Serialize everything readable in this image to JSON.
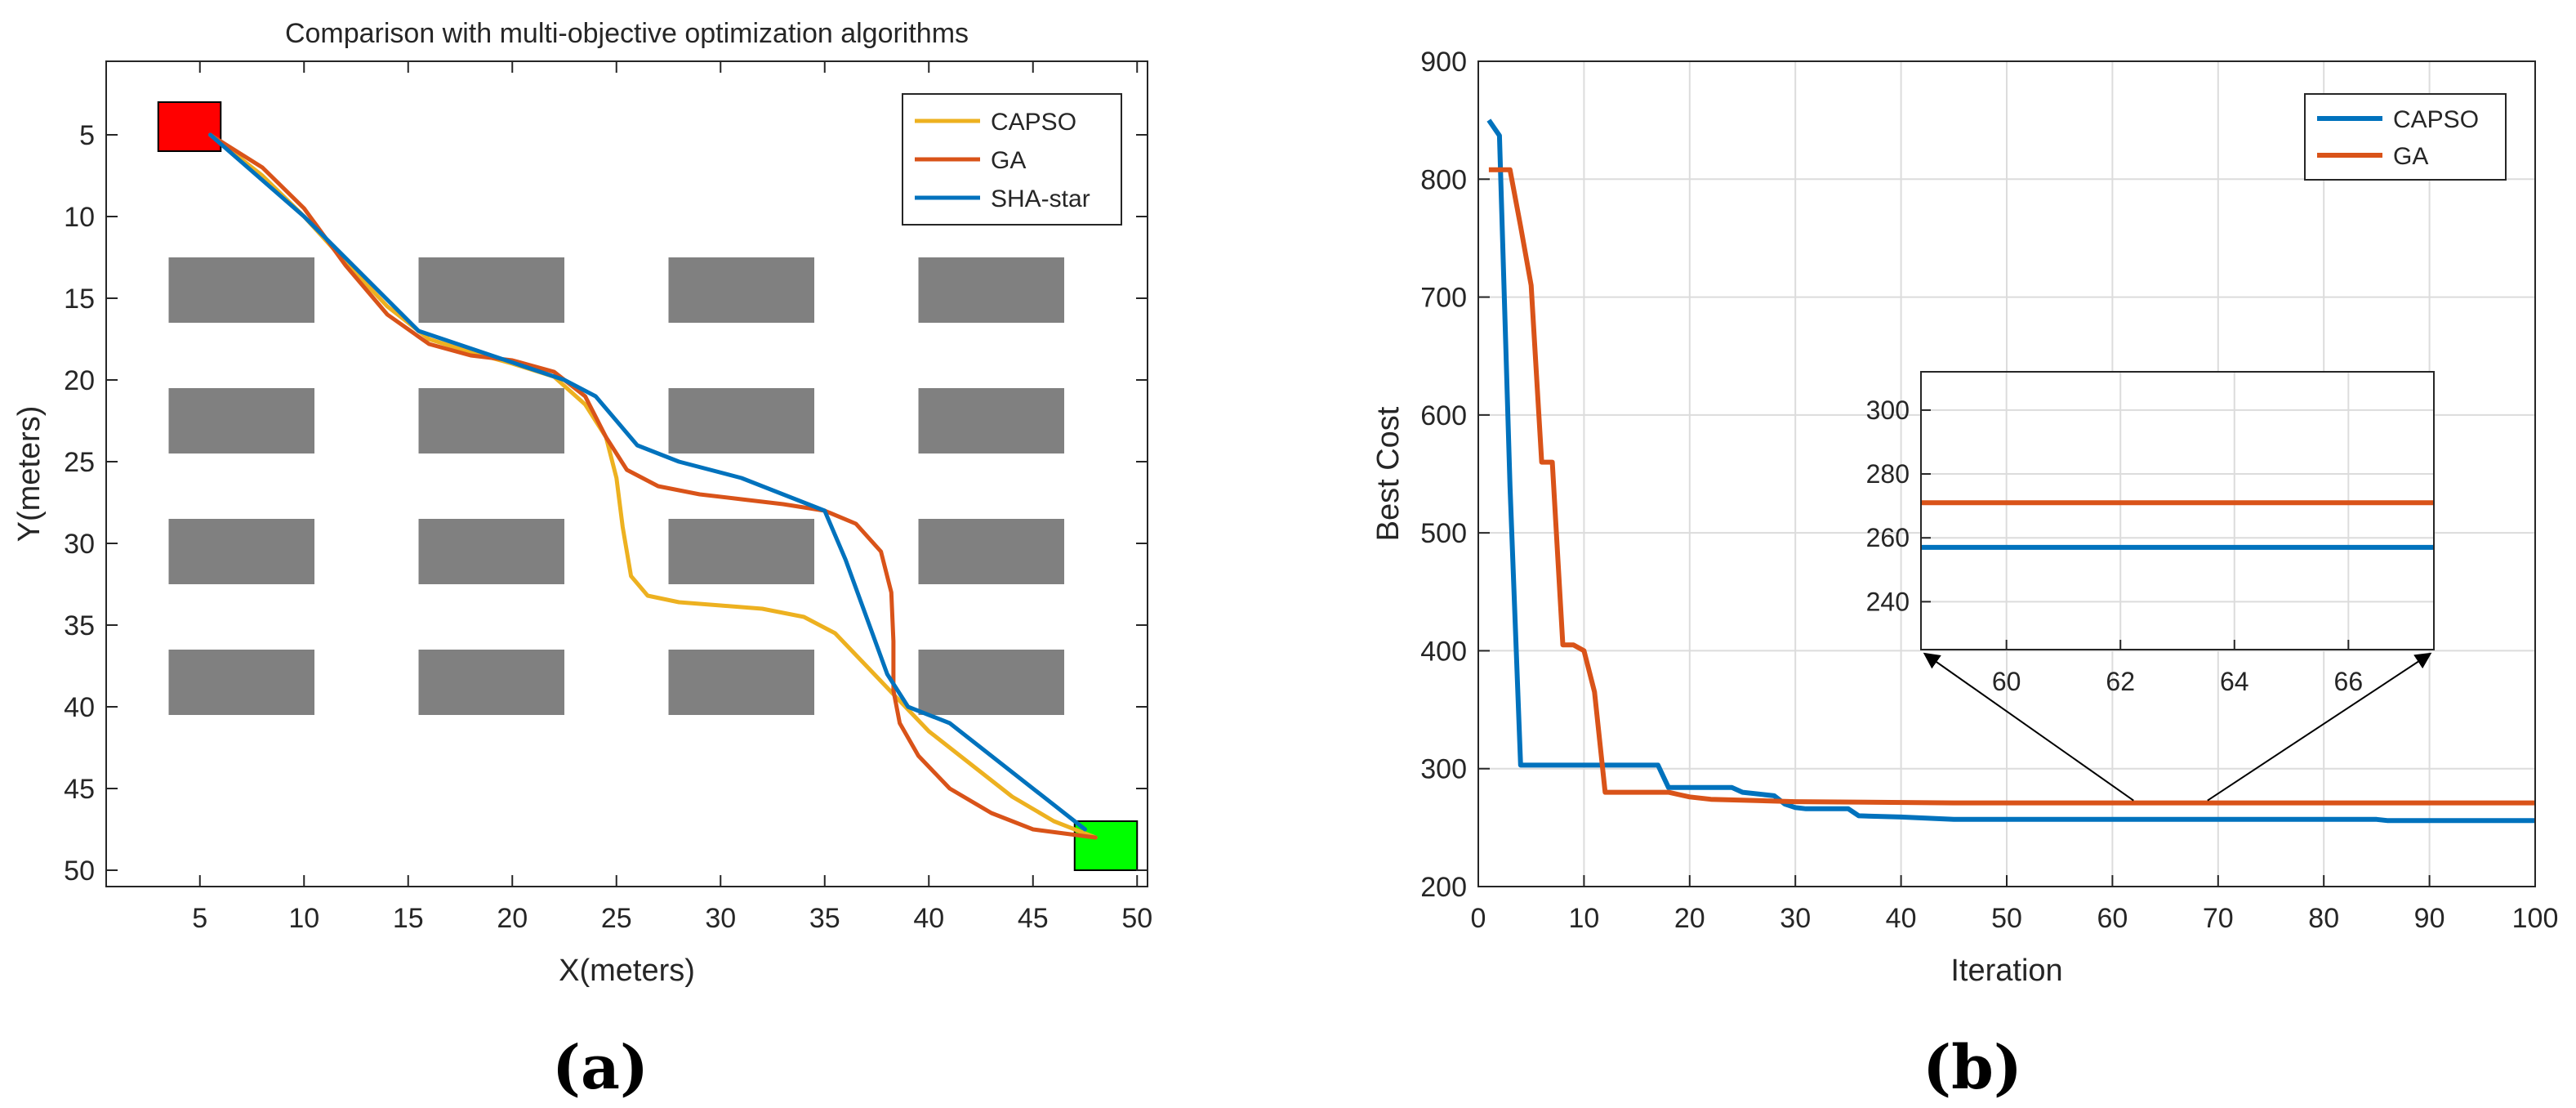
{
  "panels": {
    "a_caption": "(a)",
    "b_caption": "(b)"
  },
  "chart_data": [
    {
      "type": "line",
      "title": "Comparison with multi-objective optimization algorithms",
      "xlabel": "X(meters)",
      "ylabel": "Y(meters)",
      "xlim": [
        0.5,
        50.5
      ],
      "ylim": [
        51,
        0.5
      ],
      "y_reversed": true,
      "xticks": [
        5,
        10,
        15,
        20,
        25,
        30,
        35,
        40,
        45,
        50
      ],
      "yticks": [
        5,
        10,
        15,
        20,
        25,
        30,
        35,
        40,
        45,
        50
      ],
      "grid": false,
      "legend_position": "top-right",
      "obstacle_color": "#808080",
      "obstacles": [
        {
          "x": [
            3.5,
            10.5
          ],
          "y": [
            12.5,
            16.5
          ]
        },
        {
          "x": [
            15.5,
            22.5
          ],
          "y": [
            12.5,
            16.5
          ]
        },
        {
          "x": [
            27.5,
            34.5
          ],
          "y": [
            12.5,
            16.5
          ]
        },
        {
          "x": [
            39.5,
            46.5
          ],
          "y": [
            12.5,
            16.5
          ]
        },
        {
          "x": [
            3.5,
            10.5
          ],
          "y": [
            20.5,
            24.5
          ]
        },
        {
          "x": [
            15.5,
            22.5
          ],
          "y": [
            20.5,
            24.5
          ]
        },
        {
          "x": [
            27.5,
            34.5
          ],
          "y": [
            20.5,
            24.5
          ]
        },
        {
          "x": [
            39.5,
            46.5
          ],
          "y": [
            20.5,
            24.5
          ]
        },
        {
          "x": [
            3.5,
            10.5
          ],
          "y": [
            28.5,
            32.5
          ]
        },
        {
          "x": [
            15.5,
            22.5
          ],
          "y": [
            28.5,
            32.5
          ]
        },
        {
          "x": [
            27.5,
            34.5
          ],
          "y": [
            28.5,
            32.5
          ]
        },
        {
          "x": [
            39.5,
            46.5
          ],
          "y": [
            28.5,
            32.5
          ]
        },
        {
          "x": [
            3.5,
            10.5
          ],
          "y": [
            36.5,
            40.5
          ]
        },
        {
          "x": [
            15.5,
            22.5
          ],
          "y": [
            36.5,
            40.5
          ]
        },
        {
          "x": [
            27.5,
            34.5
          ],
          "y": [
            36.5,
            40.5
          ]
        },
        {
          "x": [
            39.5,
            46.5
          ],
          "y": [
            36.5,
            40.5
          ]
        }
      ],
      "start": {
        "x": [
          3,
          6
        ],
        "y": [
          3,
          6
        ],
        "color": "#ff0000"
      },
      "goal": {
        "x": [
          47,
          50
        ],
        "y": [
          47,
          50
        ],
        "color": "#00ff00"
      },
      "series": [
        {
          "name": "CAPSO",
          "color": "#EDB120",
          "x": [
            5.5,
            8,
            10,
            12,
            14,
            16,
            18,
            20,
            22,
            23.5,
            24.5,
            25,
            25.3,
            25.7,
            26.5,
            28,
            30,
            32,
            34,
            35.5,
            37,
            38.5,
            40,
            42,
            44,
            46,
            48
          ],
          "y": [
            5,
            7.5,
            10,
            12.8,
            15.5,
            17.5,
            18.3,
            19,
            19.8,
            21.5,
            23.5,
            26,
            29,
            32,
            33.2,
            33.6,
            33.8,
            34,
            34.5,
            35.5,
            37.5,
            39.5,
            41.5,
            43.5,
            45.5,
            47,
            48
          ]
        },
        {
          "name": "GA",
          "color": "#D95319",
          "x": [
            5.5,
            8,
            10,
            12,
            14,
            16,
            18,
            20,
            22,
            23.5,
            24.5,
            25.5,
            27,
            29,
            31,
            33,
            35,
            36.5,
            37.7,
            38.2,
            38.3,
            38.3,
            38.6,
            39.5,
            41,
            43,
            45,
            48
          ],
          "y": [
            5,
            7,
            9.5,
            13,
            16,
            17.8,
            18.5,
            18.8,
            19.5,
            21,
            23.5,
            25.5,
            26.5,
            27,
            27.3,
            27.6,
            28,
            28.8,
            30.5,
            33,
            36,
            39,
            41,
            43,
            45,
            46.5,
            47.5,
            48
          ]
        },
        {
          "name": "SHA-star",
          "color": "#0072BD",
          "x": [
            5.5,
            10,
            15.5,
            22.5,
            24,
            26,
            28,
            31,
            35,
            36,
            37,
            38,
            39,
            41,
            47.5
          ],
          "y": [
            5,
            10,
            17,
            20,
            21,
            24,
            25,
            26,
            28,
            31,
            34.5,
            38,
            40,
            41,
            47.5
          ]
        }
      ]
    },
    {
      "type": "line",
      "title": "",
      "xlabel": "Iteration",
      "ylabel": "Best Cost",
      "xlim": [
        0,
        100
      ],
      "ylim": [
        200,
        900
      ],
      "xticks": [
        0,
        10,
        20,
        30,
        40,
        50,
        60,
        70,
        80,
        90,
        100
      ],
      "yticks": [
        200,
        300,
        400,
        500,
        600,
        700,
        800,
        900
      ],
      "grid": true,
      "legend_position": "top-right",
      "series": [
        {
          "name": "CAPSO",
          "color": "#0072BD",
          "x": [
            1,
            2,
            3,
            4,
            17,
            18,
            24,
            25,
            28,
            29,
            30,
            31,
            35,
            36,
            40,
            45,
            60,
            85,
            86,
            100
          ],
          "y": [
            850,
            837,
            540,
            303,
            303,
            284,
            284,
            280,
            277,
            270,
            267,
            266,
            266,
            260,
            259,
            257,
            257,
            257,
            256,
            256
          ]
        },
        {
          "name": "GA",
          "color": "#D95319",
          "x": [
            1,
            3,
            4,
            5,
            6,
            7,
            8,
            9,
            10,
            11,
            12,
            18,
            19,
            20,
            22,
            30,
            45,
            100
          ],
          "y": [
            808,
            808,
            760,
            710,
            560,
            560,
            405,
            405,
            400,
            365,
            280,
            280,
            278,
            276,
            274,
            272,
            271,
            271
          ]
        }
      ],
      "inset": {
        "xlim": [
          58.5,
          67.5
        ],
        "ylim": [
          225,
          312
        ],
        "xticks": [
          60,
          62,
          64,
          66
        ],
        "yticks": [
          240,
          260,
          280,
          300
        ],
        "grid": true,
        "series": [
          {
            "name": "CAPSO",
            "color": "#0072BD",
            "x": [
              58.5,
              67.5
            ],
            "y": [
              257,
              257
            ]
          },
          {
            "name": "GA",
            "color": "#D95319",
            "x": [
              58.5,
              67.5
            ],
            "y": [
              271,
              271
            ]
          }
        ]
      }
    }
  ]
}
